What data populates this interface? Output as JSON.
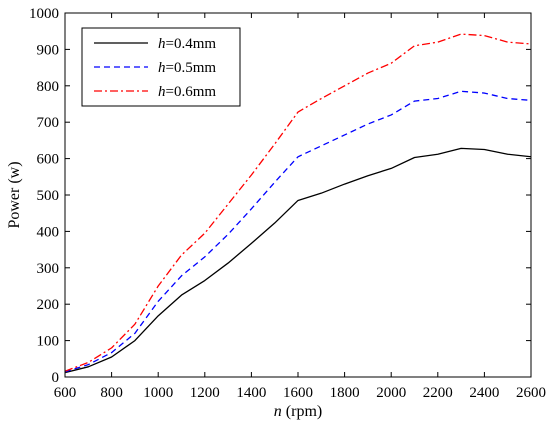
{
  "chart_data": {
    "type": "line",
    "title": "",
    "xlabel": {
      "var": "n",
      "unit": " (rpm)"
    },
    "ylabel": "Power (w)",
    "xlim": [
      600,
      2600
    ],
    "ylim": [
      0,
      1000
    ],
    "xticks": [
      600,
      800,
      1000,
      1200,
      1400,
      1600,
      1800,
      2000,
      2200,
      2400,
      2600
    ],
    "yticks": [
      0,
      100,
      200,
      300,
      400,
      500,
      600,
      700,
      800,
      900,
      1000
    ],
    "grid": false,
    "legend_position": "top-left",
    "x": [
      600,
      700,
      800,
      900,
      1000,
      1100,
      1200,
      1300,
      1400,
      1500,
      1600,
      1700,
      1800,
      1900,
      2000,
      2100,
      2200,
      2300,
      2400,
      2500,
      2600
    ],
    "series": [
      {
        "name": "h=0.4mm",
        "name_var": "h",
        "name_rest": "=0.4mm",
        "color": "#000000",
        "dash": "solid",
        "values": [
          12,
          28,
          55,
          100,
          168,
          225,
          265,
          313,
          367,
          423,
          485,
          505,
          530,
          553,
          573,
          603,
          612,
          628,
          625,
          612,
          605
        ]
      },
      {
        "name": "h=0.5mm",
        "name_var": "h",
        "name_rest": "=0.5mm",
        "color": "#0000ff",
        "dash": "dashed",
        "values": [
          14,
          34,
          67,
          120,
          208,
          278,
          330,
          392,
          462,
          535,
          605,
          635,
          665,
          695,
          720,
          758,
          765,
          785,
          780,
          765,
          760
        ]
      },
      {
        "name": "h=0.6mm",
        "name_var": "h",
        "name_rest": "=0.6mm",
        "color": "#ff0000",
        "dash": "dashdot",
        "values": [
          16,
          40,
          80,
          145,
          250,
          335,
          395,
          475,
          555,
          640,
          728,
          765,
          800,
          835,
          862,
          910,
          920,
          942,
          938,
          920,
          915
        ]
      }
    ]
  }
}
